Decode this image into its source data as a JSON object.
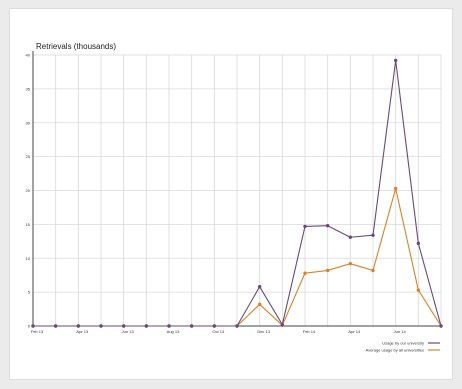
{
  "chart_data": {
    "type": "line",
    "ylabel": "Retrievals (thousands)",
    "ylim": [
      0,
      40
    ],
    "y_ticks": [
      "0",
      "5",
      "10",
      "15",
      "20",
      "25",
      "30",
      "35",
      "40"
    ],
    "x_tick_labels": [
      "Feb 13",
      "Apr 13",
      "Jun 13",
      "Aug 13",
      "Oct 13",
      "Dec 13",
      "Feb 14",
      "Apr 14",
      "Jun 14"
    ],
    "grid": true,
    "legend_position": "bottom-right",
    "series": [
      {
        "name": "Usage by our university",
        "color": "#6a4a7a",
        "values": [
          0,
          0,
          0,
          0,
          0,
          0,
          0,
          0,
          0,
          0,
          5.8,
          0.2,
          14.7,
          14.8,
          13.1,
          13.4,
          39.2,
          12.2,
          0
        ]
      },
      {
        "name": "Average usage by all universities",
        "color": "#d9822b",
        "values": [
          0,
          0,
          0,
          0,
          0,
          0,
          0,
          0,
          0,
          0,
          3.2,
          0.1,
          7.8,
          8.2,
          9.2,
          8.2,
          20.3,
          5.3,
          0
        ]
      }
    ]
  }
}
